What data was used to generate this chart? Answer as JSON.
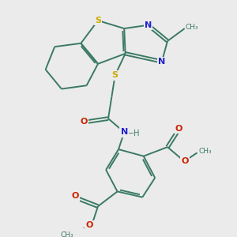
{
  "background_color": "#ebebeb",
  "bond_color": "#3a7a62",
  "bond_width": 1.4,
  "S_color": "#ccaa00",
  "N_color": "#2222cc",
  "O_color": "#cc2200",
  "text_fontsize": 8,
  "figsize": [
    3.0,
    3.0
  ],
  "dpi": 100,
  "xlim": [
    0,
    10
  ],
  "ylim": [
    0,
    10
  ]
}
